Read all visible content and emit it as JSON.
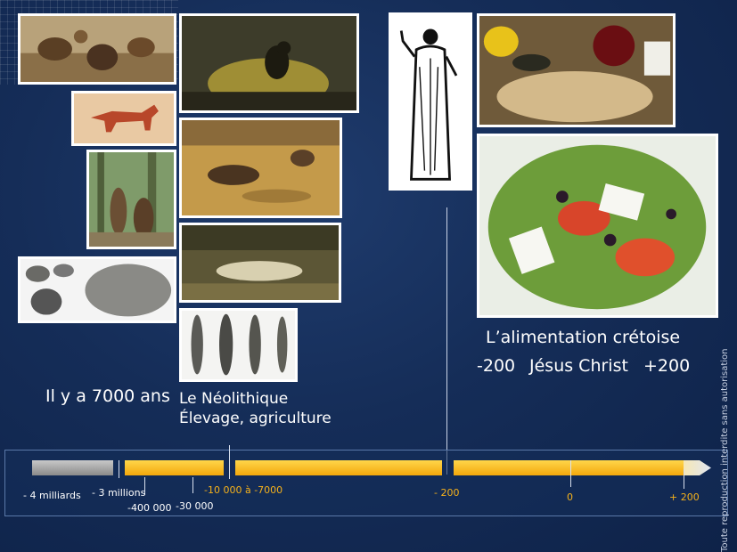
{
  "captions": {
    "cretan_diet": "L’alimentation crétoise",
    "minus_200": "-200",
    "jesus": "Jésus Christ",
    "plus_200": "+200",
    "seven_thousand": "Il y a 7000 ans",
    "neolithic": "Le Néolithique",
    "livestock": "Élevage, agriculture"
  },
  "timeline": {
    "labels": {
      "billions": "- 4 milliards",
      "millions": "- 3 millions",
      "k400": "-400 000",
      "k30": "-30 000",
      "range": "-10 000 à -7000",
      "m200": "- 200",
      "zero": "0",
      "p200": "+ 200"
    }
  },
  "copyright": "Toute reproduction interdite sans autorisation",
  "colors": {
    "background": "#152d58",
    "timeline_gold": "#f6b21b",
    "timeline_gray": "#a0a0a0",
    "label_orange": "#f6b21b"
  }
}
